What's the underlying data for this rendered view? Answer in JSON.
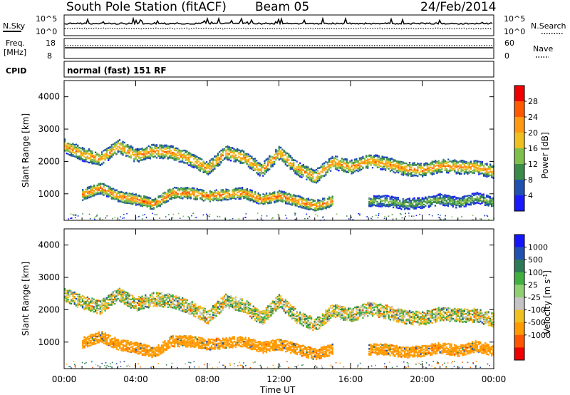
{
  "header": {
    "station": "South Pole Station (fitACF)",
    "beam": "Beam 05",
    "date": "24/Feb/2014"
  },
  "noise_panel": {
    "left_label": "N.Sky",
    "left_ticks": [
      "10^5",
      "10^0"
    ],
    "right_label": "N.Search",
    "right_ticks": [
      "10^5",
      "10^0"
    ]
  },
  "freq_panel": {
    "left_label_1": "Freq.",
    "left_label_2": "[MHz]",
    "left_ticks": [
      "18",
      "8"
    ],
    "right_label": "Nave",
    "right_ticks": [
      "60",
      "0"
    ]
  },
  "cpid_panel": {
    "label": "CPID",
    "text": "normal (fast) 151 RF"
  },
  "xaxis": {
    "label": "Time UT",
    "ticks": [
      "00:00",
      "04:00",
      "08:00",
      "12:00",
      "16:00",
      "20:00",
      "00:00"
    ]
  },
  "colors": {
    "power": [
      "#1a1aff",
      "#2050b0",
      "#3a8a4a",
      "#7fbf4c",
      "#f0c020",
      "#ff9a10",
      "#ff5a00",
      "#ee0000"
    ],
    "velocity": [
      "#ee0000",
      "#ff5500",
      "#ff9a00",
      "#f0c020",
      "#c4c4c4",
      "#90d070",
      "#40b040",
      "#2f7a56",
      "#2050b0",
      "#1515ff"
    ],
    "gray_scatter": "#c4c4c4"
  },
  "chart_data": [
    {
      "type": "heatmap",
      "name": "power",
      "ylabel": "Slant Range [km]",
      "ylim": [
        180,
        4500
      ],
      "yticks": [
        "1000",
        "2000",
        "3000",
        "4000"
      ],
      "colorbar": {
        "label": "Power [dB]",
        "ticks": [
          "28",
          "24",
          "20",
          "16",
          "12",
          "8",
          "4"
        ],
        "range": [
          0,
          32
        ]
      },
      "x_range_hours": [
        0,
        24
      ],
      "bands": [
        {
          "x": [
            0,
            1,
            2,
            3,
            4,
            5,
            6,
            7,
            8,
            9,
            10,
            11,
            12,
            13,
            14,
            15,
            16,
            17,
            18,
            19,
            20,
            21,
            22,
            23,
            24
          ],
          "range_km": [
            2500,
            2250,
            2100,
            2500,
            2200,
            2350,
            2300,
            2100,
            1800,
            2300,
            2150,
            1750,
            2300,
            1800,
            1550,
            2000,
            1850,
            2050,
            1950,
            1800,
            1750,
            1900,
            1850,
            1850,
            1700
          ],
          "peak_db": 24
        },
        {
          "x": [
            1,
            2,
            3,
            4,
            5,
            6,
            7,
            8,
            9,
            10,
            11,
            12,
            13,
            14,
            15
          ],
          "range_km": [
            1000,
            1200,
            950,
            850,
            700,
            1050,
            1050,
            950,
            1000,
            1050,
            850,
            950,
            800,
            650,
            800
          ],
          "peak_db": 26
        },
        {
          "x": [
            17,
            18,
            19,
            20,
            21,
            22,
            23,
            24
          ],
          "range_km": [
            800,
            800,
            700,
            750,
            850,
            750,
            900,
            750
          ],
          "peak_db": 14
        }
      ]
    },
    {
      "type": "heatmap",
      "name": "velocity",
      "ylabel": "Slant Range [km]",
      "ylim": [
        180,
        4500
      ],
      "yticks": [
        "1000",
        "2000",
        "3000",
        "4000"
      ],
      "colorbar": {
        "label": "Velocity [m s^-1]",
        "ticks": [
          "1000",
          "500",
          "100",
          "25",
          "-25",
          "-100",
          "-500",
          "-1000"
        ],
        "range": [
          -1200,
          1200
        ]
      },
      "x_range_hours": [
        0,
        24
      ],
      "bands": [
        {
          "x": [
            0,
            1,
            2,
            3,
            4,
            5,
            6,
            7,
            8,
            9,
            10,
            11,
            12,
            13,
            14,
            15,
            16,
            17,
            18,
            19,
            20,
            21,
            22,
            23,
            24
          ],
          "range_km": [
            2500,
            2250,
            2100,
            2500,
            2200,
            2350,
            2300,
            2100,
            1800,
            2300,
            2150,
            1750,
            2300,
            1800,
            1550,
            2000,
            1850,
            2050,
            1950,
            1800,
            1750,
            1900,
            1850,
            1850,
            1700
          ],
          "typical_velocity": 0
        },
        {
          "x": [
            1,
            2,
            3,
            4,
            5,
            6,
            7,
            8,
            9,
            10,
            11,
            12,
            13,
            14,
            15
          ],
          "range_km": [
            1000,
            1200,
            950,
            850,
            700,
            1050,
            1050,
            950,
            1000,
            1050,
            850,
            950,
            800,
            650,
            800
          ],
          "typical_velocity": -300
        },
        {
          "x": [
            17,
            18,
            19,
            20,
            21,
            22,
            23,
            24
          ],
          "range_km": [
            800,
            800,
            700,
            750,
            850,
            750,
            900,
            750
          ],
          "typical_velocity": -300
        }
      ]
    }
  ]
}
